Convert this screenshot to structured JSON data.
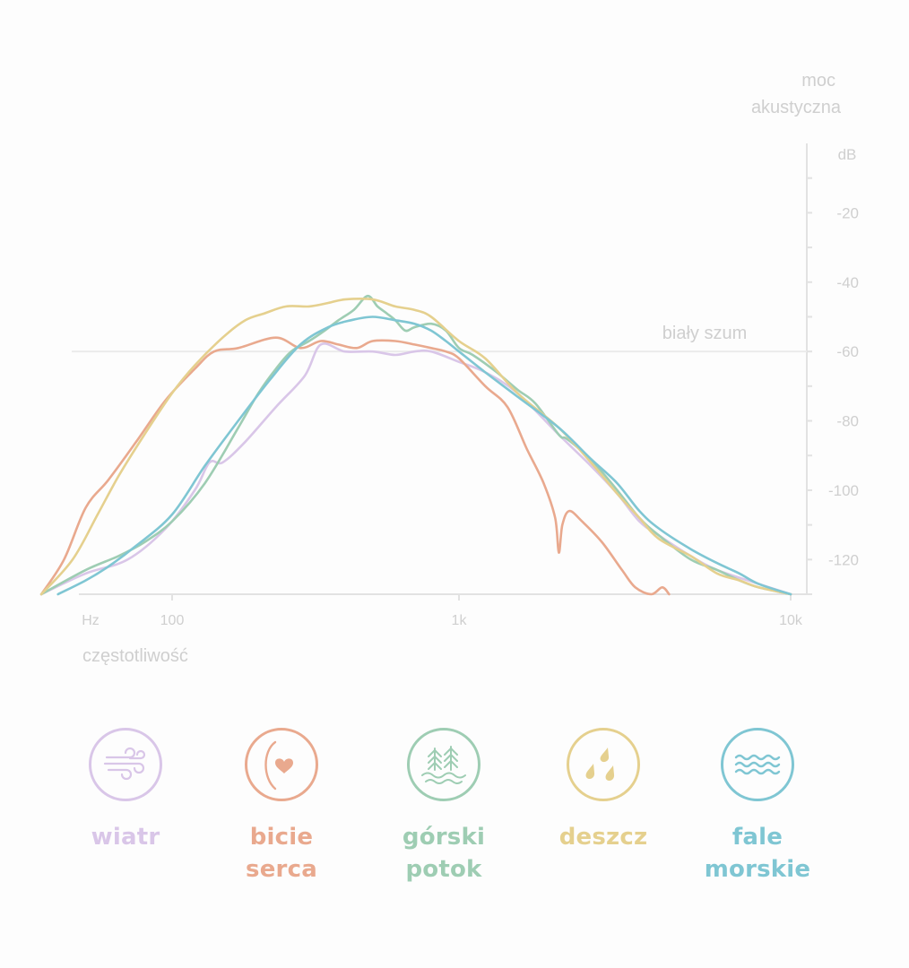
{
  "chart_data": {
    "type": "line",
    "x_scale": "log",
    "xlim": [
      30,
      10000
    ],
    "ylim": [
      -130,
      0
    ],
    "xlabel": "częstotliwość",
    "ylabel": "moc akustyczna",
    "x_unit": "Hz",
    "y_unit": "dB",
    "x_ticks": [
      {
        "value": 100,
        "label": "100"
      },
      {
        "value": 1000,
        "label": "1k"
      },
      {
        "value": 10000,
        "label": "10k"
      }
    ],
    "y_ticks": [
      {
        "value": -20,
        "label": "-20"
      },
      {
        "value": -40,
        "label": "-40"
      },
      {
        "value": -60,
        "label": "-60"
      },
      {
        "value": -80,
        "label": "-80"
      },
      {
        "value": -100,
        "label": "-100"
      },
      {
        "value": -120,
        "label": "-120"
      }
    ],
    "reference_line": {
      "value": -60,
      "label": "biały szum"
    },
    "grid": false,
    "series": [
      {
        "name": "wiatr",
        "color": "#d9c6e8",
        "x": [
          35,
          50,
          70,
          95,
          120,
          135,
          150,
          180,
          230,
          290,
          330,
          400,
          500,
          600,
          700,
          800,
          1000,
          1200,
          1500,
          2000,
          2500,
          3000,
          3500,
          4000,
          5000,
          6000,
          8000,
          10000
        ],
        "y": [
          -130,
          -124,
          -120,
          -111,
          -100,
          -92,
          -92,
          -86,
          -76,
          -67,
          -58,
          -60,
          -60,
          -61,
          -60,
          -60,
          -63,
          -66,
          -72,
          -84,
          -93,
          -101,
          -109,
          -113,
          -119,
          -123,
          -127,
          -130
        ]
      },
      {
        "name": "bicie serca",
        "color": "#e9a98e",
        "x": [
          35,
          42,
          50,
          60,
          75,
          95,
          120,
          140,
          170,
          230,
          280,
          330,
          380,
          440,
          500,
          600,
          700,
          800,
          900,
          1000,
          1200,
          1400,
          1600,
          1800,
          1950,
          2000,
          2050,
          2150,
          2350,
          2700,
          3100,
          3400,
          3800,
          4100,
          4300
        ],
        "y": [
          -130,
          -120,
          -105,
          -97,
          -86,
          -74,
          -65,
          -60,
          -59,
          -56,
          -59,
          -57,
          -58,
          -59,
          -57,
          -57,
          -58,
          -59,
          -60,
          -62,
          -70,
          -76,
          -88,
          -98,
          -108,
          -118,
          -110,
          -106,
          -109,
          -115,
          -123,
          -128,
          -130,
          -128,
          -130
        ]
      },
      {
        "name": "górski potok",
        "color": "#9ecdb3",
        "x": [
          35,
          50,
          65,
          80,
          100,
          130,
          170,
          200,
          230,
          260,
          300,
          340,
          380,
          430,
          480,
          520,
          560,
          600,
          650,
          700,
          800,
          900,
          1000,
          1100,
          1300,
          1500,
          1700,
          2000,
          2100,
          2300,
          2600,
          3000,
          3500,
          4000,
          5000,
          6000,
          7000,
          8000,
          10000
        ],
        "y": [
          -130,
          -123,
          -119,
          -115,
          -109,
          -98,
          -82,
          -72,
          -65,
          -60,
          -57,
          -54,
          -51,
          -48,
          -44,
          -47,
          -49,
          -51,
          -54,
          -53,
          -52,
          -54,
          -59,
          -61,
          -66,
          -71,
          -75,
          -84,
          -85,
          -88,
          -93,
          -100,
          -108,
          -113,
          -120,
          -123,
          -126,
          -128,
          -130
        ]
      },
      {
        "name": "deszcz",
        "color": "#e5d08e",
        "x": [
          35,
          45,
          55,
          65,
          80,
          100,
          120,
          150,
          180,
          210,
          250,
          300,
          350,
          400,
          500,
          600,
          700,
          800,
          1000,
          1200,
          1500,
          2000,
          2500,
          3000,
          3500,
          4000,
          5000,
          6000,
          7000,
          8000,
          10000
        ],
        "y": [
          -130,
          -120,
          -107,
          -96,
          -84,
          -72,
          -64,
          -56,
          -51,
          -49,
          -47,
          -47,
          -46,
          -45,
          -45,
          -47,
          -48,
          -50,
          -57,
          -62,
          -72,
          -82,
          -92,
          -101,
          -108,
          -114,
          -119,
          -124,
          -126,
          -128,
          -130
        ]
      },
      {
        "name": "fale morskie",
        "color": "#7fc6d3",
        "x": [
          40,
          50,
          60,
          75,
          100,
          130,
          170,
          220,
          280,
          350,
          420,
          500,
          600,
          700,
          800,
          900,
          1000,
          1200,
          1500,
          2000,
          2500,
          3000,
          3500,
          4000,
          5000,
          6000,
          7000,
          8000,
          10000
        ],
        "y": [
          -130,
          -126,
          -122,
          -116,
          -107,
          -93,
          -80,
          -68,
          -58,
          -53,
          -51,
          -50,
          -51,
          -52,
          -54,
          -57,
          -60,
          -66,
          -73,
          -82,
          -91,
          -98,
          -106,
          -111,
          -117,
          -121,
          -124,
          -127,
          -130
        ]
      }
    ]
  },
  "legend": [
    {
      "lines": [
        "wiatr"
      ],
      "icon": "wind-icon",
      "color": "#d9c6e8"
    },
    {
      "lines": [
        "bicie",
        "serca"
      ],
      "icon": "heartbeat-icon",
      "color": "#e9a98e"
    },
    {
      "lines": [
        "górski",
        "potok"
      ],
      "icon": "forest-stream-icon",
      "color": "#9ecdb3"
    },
    {
      "lines": [
        "deszcz"
      ],
      "icon": "raindrops-icon",
      "color": "#e5d08e"
    },
    {
      "lines": [
        "fale",
        "morskie"
      ],
      "icon": "waves-icon",
      "color": "#7fc6d3"
    }
  ]
}
